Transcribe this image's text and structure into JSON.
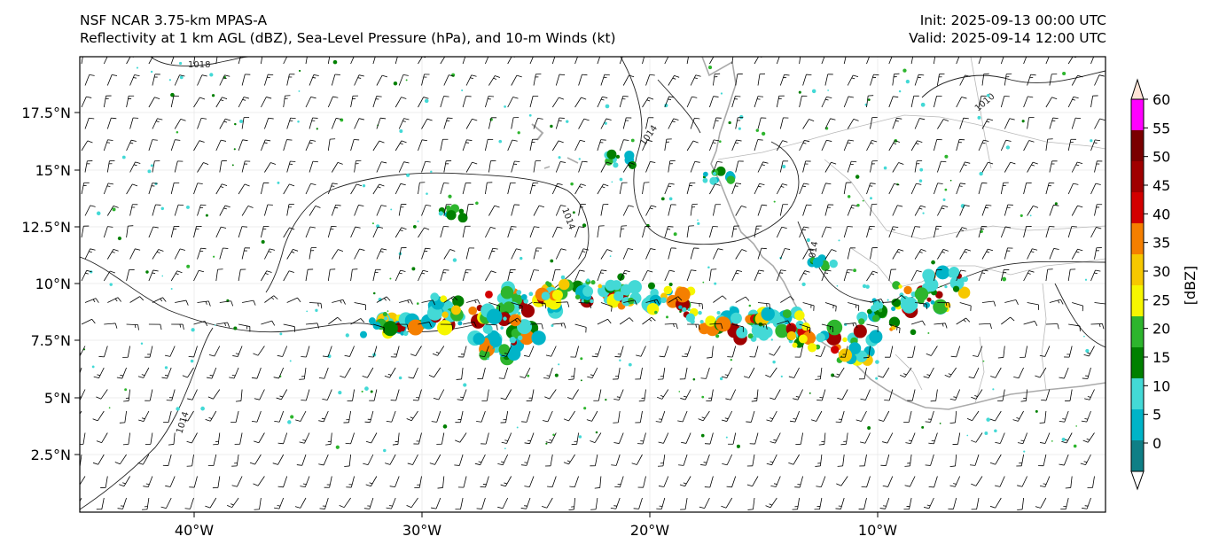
{
  "header": {
    "title_line1": "NSF NCAR 3.75-km MPAS-A",
    "title_line2": "Reflectivity at 1 km AGL (dBZ), Sea-Level Pressure (hPa), and 10-m Winds (kt)",
    "init": "Init: 2025-09-13 00:00 UTC",
    "valid": "Valid: 2025-09-14 12:00 UTC"
  },
  "axes": {
    "lat_labels": [
      "17.5°N",
      "15°N",
      "12.5°N",
      "10°N",
      "7.5°N",
      "5°N",
      "2.5°N"
    ],
    "lon_labels": [
      "40°W",
      "30°W",
      "20°W",
      "10°W"
    ]
  },
  "colorbar": {
    "label": "[dBZ]",
    "ticks": [
      "0",
      "5",
      "10",
      "15",
      "20",
      "25",
      "30",
      "35",
      "40",
      "45",
      "50",
      "55",
      "60"
    ],
    "colors": [
      "#ffffff",
      "#0f7f86",
      "#00b4c8",
      "#43d9d6",
      "#008000",
      "#2db52d",
      "#f6f600",
      "#f6c800",
      "#f57f00",
      "#d20000",
      "#a00000",
      "#7a0000",
      "#ff00ff",
      "#ffe4d6"
    ]
  },
  "contour_labels": [
    "1018",
    "1014",
    "1014",
    "1014",
    "1010",
    "1014"
  ],
  "colors": {
    "coast": "#aaaaaa",
    "contour": "#222222",
    "barb": "#000000",
    "grid": "#e8e8e8"
  }
}
